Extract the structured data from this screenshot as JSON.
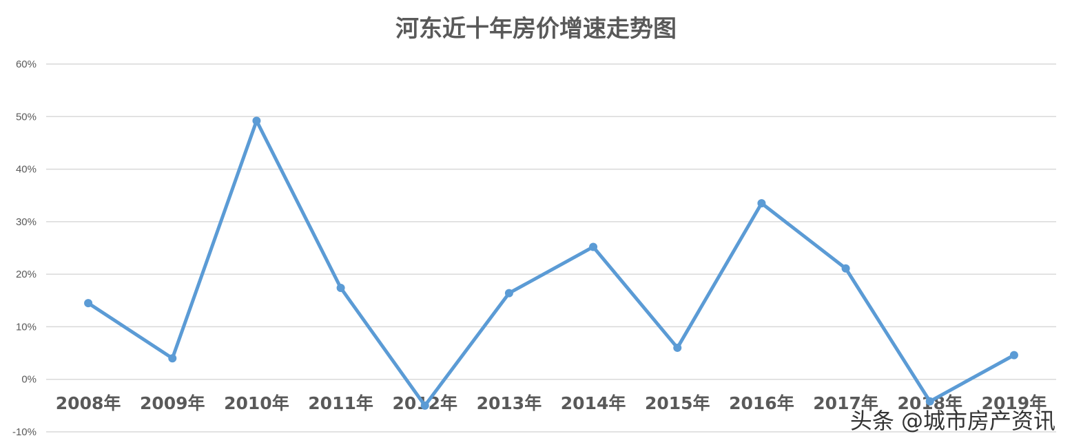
{
  "chart_data": {
    "type": "line",
    "title": "河东近十年房价增速走势图",
    "xlabel": "",
    "ylabel": "",
    "categories": [
      "2008年",
      "2009年",
      "2010年",
      "2011年",
      "2012年",
      "2013年",
      "2014年",
      "2015年",
      "2016年",
      "2017年",
      "2018年",
      "2019年"
    ],
    "series": [
      {
        "values": [
          14.5,
          4.0,
          49.2,
          17.4,
          -5.0,
          16.4,
          25.2,
          6.0,
          33.5,
          21.1,
          -4.2,
          4.6
        ]
      }
    ],
    "ylim": [
      -10,
      60
    ],
    "yticks": [
      -10,
      0,
      10,
      20,
      30,
      40,
      50,
      60
    ],
    "ytick_format": "%",
    "grid": true,
    "legend": "none",
    "line_color": "#5B9BD5",
    "grid_color": "#D9D9D9"
  },
  "watermark": "头条 @城市房产资讯"
}
